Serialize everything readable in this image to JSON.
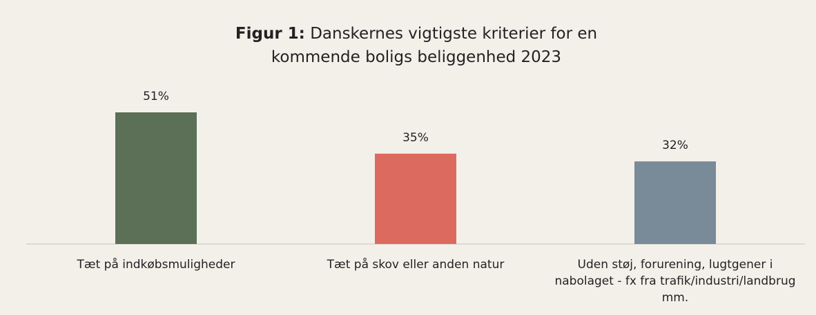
{
  "chart_data": {
    "type": "bar",
    "title_label": "Figur 1:",
    "title": "Danskernes vigtigste kriterier for en kommende boligs beliggenhed 2023",
    "categories": [
      "Tæt på indkøbsmuligheder",
      "Tæt på skov eller anden natur",
      "Uden støj, forurening, lugtgener i nabolaget - fx fra trafik/industri/landbrug mm."
    ],
    "values": [
      51,
      35,
      32
    ],
    "value_labels": [
      "51%",
      "35%",
      "32%"
    ],
    "colors": [
      "#5b7056",
      "#dd6a5f",
      "#798a98"
    ]
  }
}
